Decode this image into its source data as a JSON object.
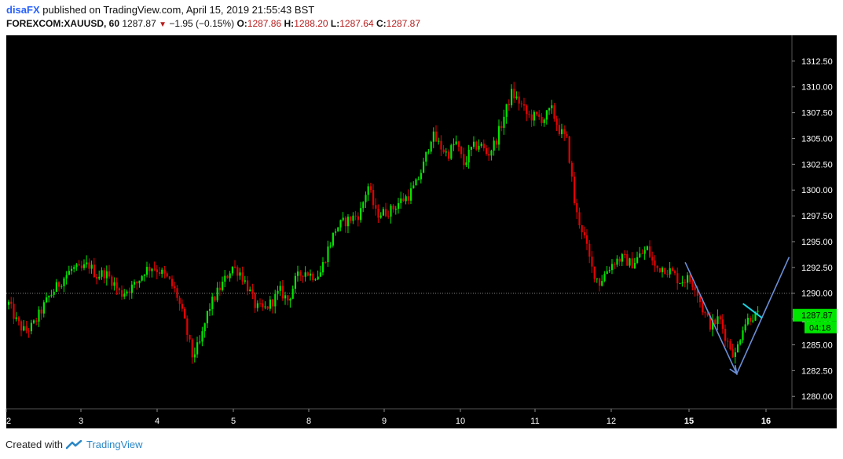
{
  "header": {
    "author": "disaFX",
    "published_text": "published on TradingView.com, April 15, 2019 21:55:43 BST",
    "symbol": "FOREXCOM:XAUUSD, 60",
    "last": "1287.87",
    "change": "−1.95 (−0.15%)",
    "o_label": "O:",
    "o_value": "1287.86",
    "h_label": "H:",
    "h_value": "1288.20",
    "l_label": "L:",
    "l_value": "1287.64",
    "c_label": "C:",
    "c_value": "1287.87"
  },
  "footer": {
    "created_with": "Created with",
    "brand": "TradingView"
  },
  "colors": {
    "up": "#00e600",
    "down": "#e60000",
    "background": "#000000",
    "axis_text": "#ffffff",
    "wave_line": "#6b8fd6",
    "cyan_line": "#1ad6e0",
    "price_label_bg": "#00e600"
  },
  "chart_data": {
    "type": "candlestick",
    "ylim": [
      1278.8,
      1315.0
    ],
    "y_ticks": [
      "1312.50",
      "1310.00",
      "1307.50",
      "1305.00",
      "1302.50",
      "1300.00",
      "1297.50",
      "1295.00",
      "1292.50",
      "1290.00",
      "1287.50",
      "1285.00",
      "1282.50",
      "1280.00"
    ],
    "x_ticks": [
      "2",
      "3",
      "4",
      "5",
      "8",
      "9",
      "10",
      "11",
      "12",
      "15",
      "16"
    ],
    "current_price": "1287.87",
    "countdown": "04:18",
    "dotted_level": 1290.0,
    "path": [
      1289.0,
      1287.2,
      1286.3,
      1286.8,
      1288.2,
      1289.6,
      1290.6,
      1291.6,
      1292.4,
      1292.2,
      1292.8,
      1291.7,
      1292.0,
      1291.2,
      1289.9,
      1290.4,
      1290.9,
      1292.2,
      1292.6,
      1292.1,
      1291.3,
      1290.0,
      1287.3,
      1283.9,
      1285.2,
      1288.4,
      1289.9,
      1291.2,
      1292.6,
      1292.0,
      1290.5,
      1288.6,
      1288.4,
      1289.2,
      1290.2,
      1289.3,
      1291.4,
      1292.2,
      1291.7,
      1291.9,
      1294.3,
      1296.3,
      1296.9,
      1297.3,
      1297.7,
      1300.5,
      1297.7,
      1297.8,
      1298.1,
      1298.9,
      1299.4,
      1300.5,
      1302.5,
      1305.4,
      1304.3,
      1303.4,
      1304.7,
      1302.5,
      1304.0,
      1304.5,
      1303.4,
      1304.7,
      1307.0,
      1309.4,
      1308.5,
      1307.2,
      1307.1,
      1306.9,
      1307.8,
      1305.8,
      1304.7,
      1298.0,
      1295.8,
      1292.5,
      1291.0,
      1292.3,
      1293.2,
      1293.4,
      1292.8,
      1293.6,
      1294.3,
      1292.4,
      1292.5,
      1292.1,
      1291.2,
      1291.4,
      1290.8,
      1288.3,
      1286.8,
      1287.6,
      1285.4,
      1283.9,
      1286.9,
      1287.8,
      1287.87
    ],
    "drawings": {
      "wave": [
        {
          "x_day": "15",
          "x_off": -0.05,
          "y": 1293.0
        },
        {
          "x_day": "15",
          "x_off": 0.62,
          "y": 1282.2
        },
        {
          "x_day": "16",
          "x_off": 0.3,
          "y": 1293.5
        }
      ],
      "cyan_segment": [
        {
          "x_day": "15",
          "x_off": 0.7,
          "y": 1289.0
        },
        {
          "x_day": "15",
          "x_off": 0.95,
          "y": 1287.6
        }
      ]
    }
  }
}
